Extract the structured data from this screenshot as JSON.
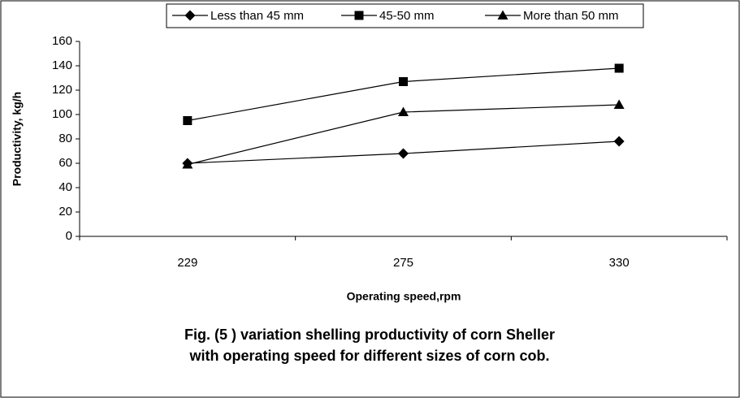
{
  "chart_data": {
    "type": "line",
    "title": [
      "Fig. (5 ) variation shelling productivity of corn Sheller",
      "with operating speed for different sizes of corn cob."
    ],
    "x_label": "Operating speed,rpm",
    "y_label": "Productivity, kg/h",
    "categories": [
      "229",
      "275",
      "330"
    ],
    "series": [
      {
        "name": "Less than 45 mm",
        "color": "#000000",
        "marker": "diamond",
        "values": [
          60,
          68,
          78
        ]
      },
      {
        "name": "45-50 mm",
        "color": "#000000",
        "marker": "square",
        "values": [
          95,
          127,
          138
        ]
      },
      {
        "name": "More than 50 mm",
        "color": "#000000",
        "marker": "triangle",
        "values": [
          59,
          102,
          108
        ]
      }
    ],
    "ylim": [
      0,
      160
    ],
    "yticks": [
      0,
      20,
      40,
      60,
      80,
      100,
      120,
      140,
      160
    ],
    "grid": false,
    "legend": "top"
  }
}
